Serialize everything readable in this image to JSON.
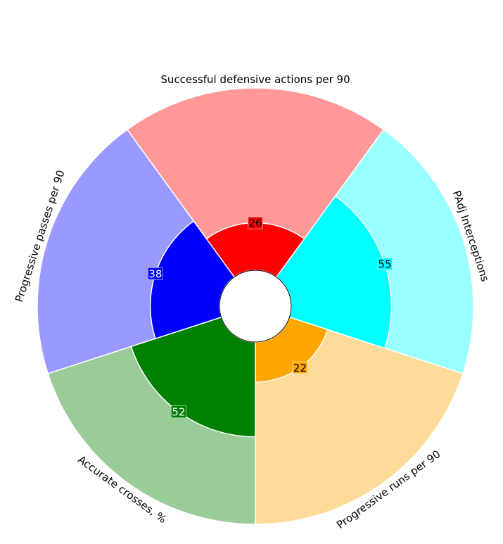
{
  "chart_data": {
    "type": "pizza",
    "max_value": 100,
    "categories": [
      "Successful defensive actions per 90",
      "PAdj Interceptions",
      "Progressive runs per 90",
      "Accurate crosses, %",
      "Progressive passes per 90"
    ],
    "values": [
      26,
      55,
      22,
      52,
      38
    ],
    "value_labels": [
      "26",
      "55",
      "22",
      "52",
      "38"
    ],
    "colors": [
      "#ff0000",
      "#00ffff",
      "#ffa500",
      "#008000",
      "#0000ff"
    ],
    "background_colors": [
      "#ff9999",
      "#99ffff",
      "#ffdb99",
      "#99cc99",
      "#9999ff"
    ],
    "label_text_colors": [
      "#000000",
      "#000000",
      "#000000",
      "#ffffff",
      "#ffffff"
    ]
  }
}
